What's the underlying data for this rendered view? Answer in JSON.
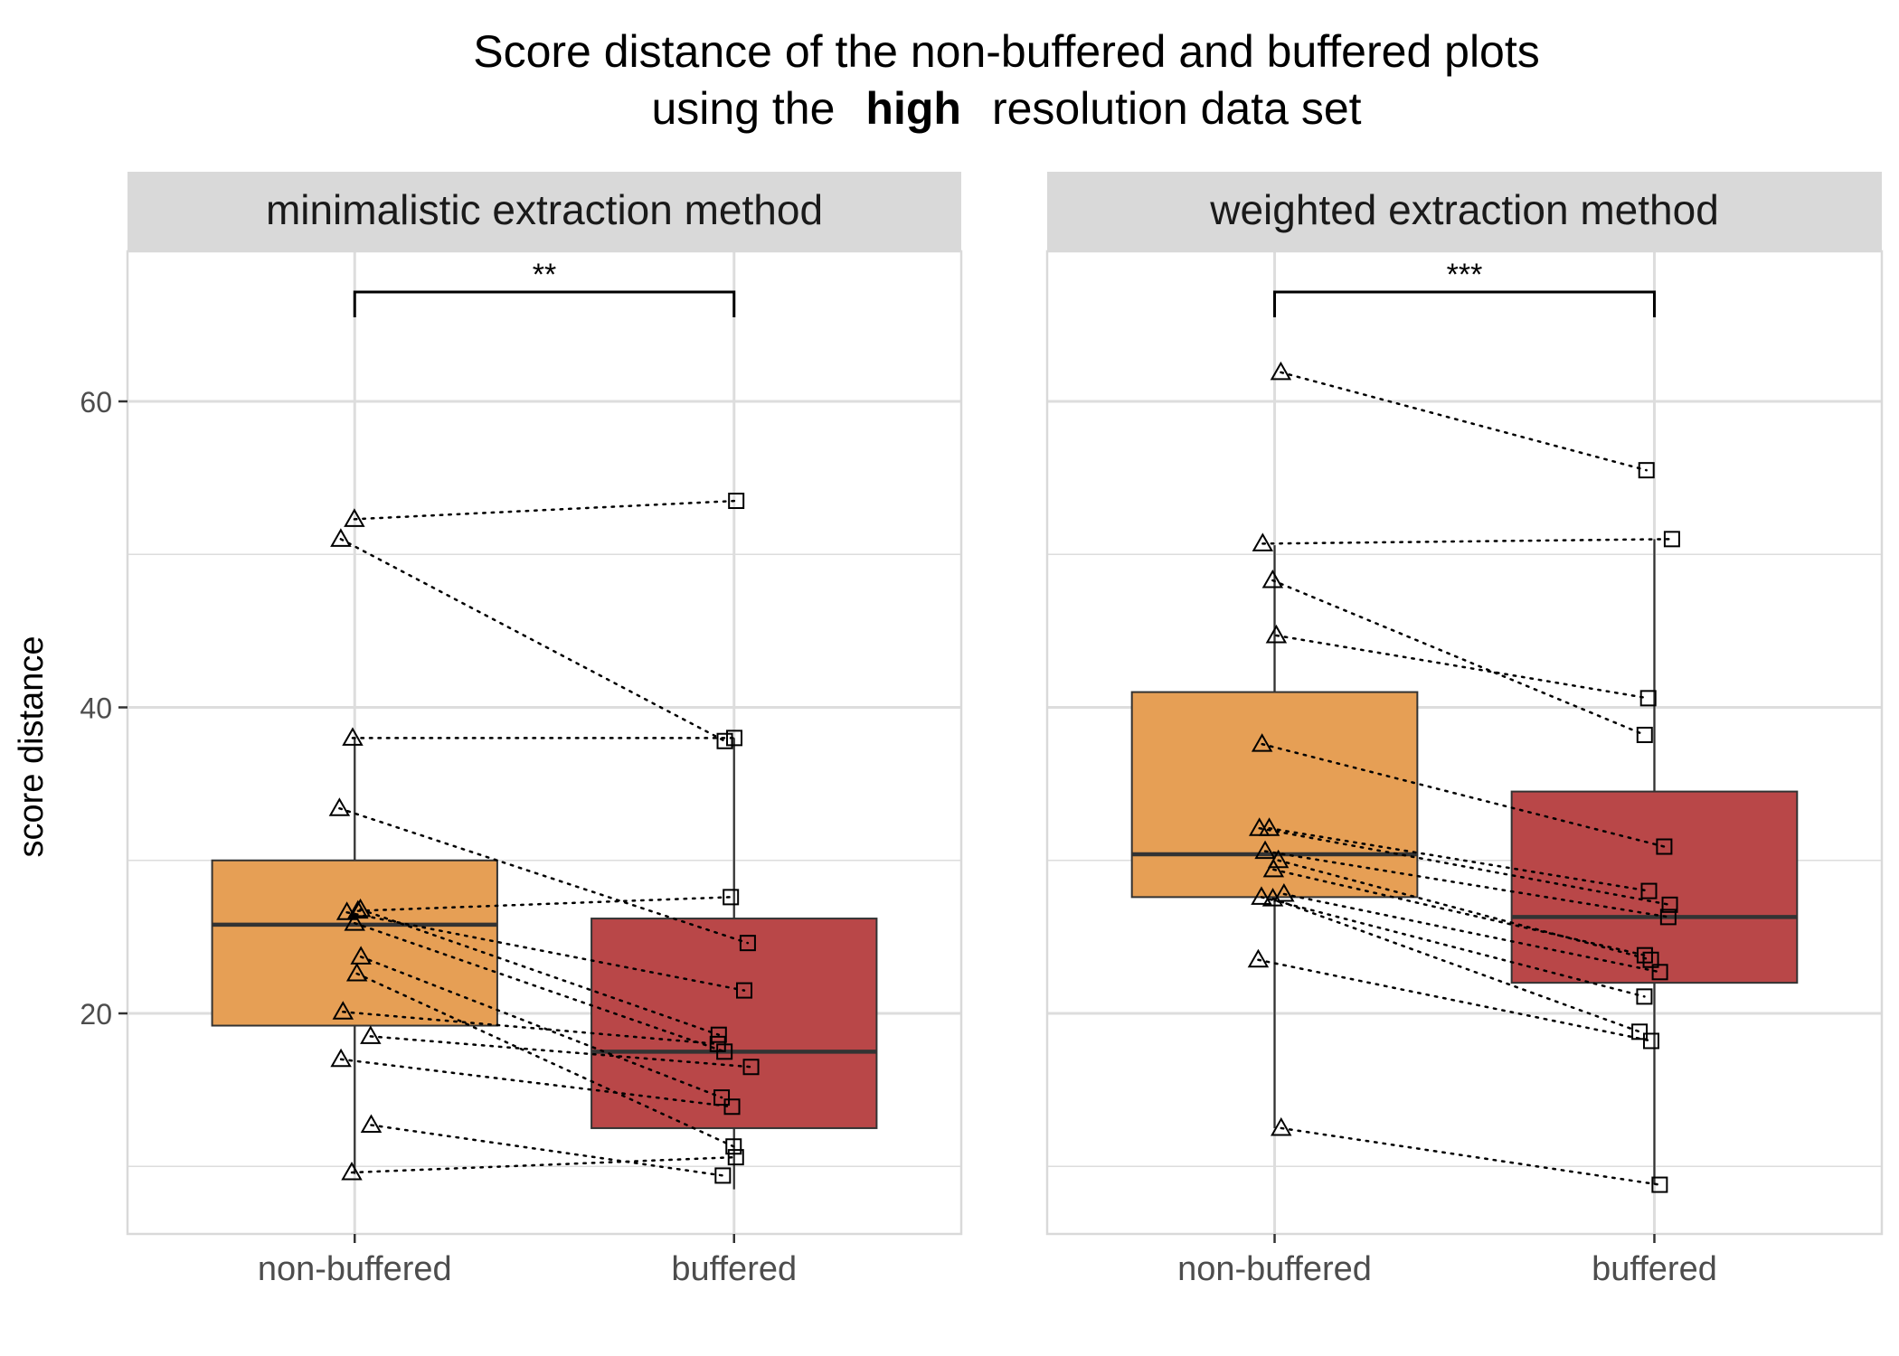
{
  "title": {
    "line1": "Score distance of the non-buffered and buffered plots",
    "line2_prefix": "using the",
    "line2_bold": "high",
    "line2_suffix": "resolution data set"
  },
  "ylabel": "score distance",
  "colors": {
    "non_buffered_fill": "#E69F55",
    "buffered_fill": "#B94748",
    "strip_bg": "#D9D9D9",
    "grid": "#DDDDDD",
    "median_line": "#333333"
  },
  "chart_data": [
    {
      "type": "box",
      "panel_title": "minimalistic extraction method",
      "categories": [
        "non-buffered",
        "buffered"
      ],
      "ylim": [
        5,
        70
      ],
      "yticks": [
        20,
        40,
        60
      ],
      "grid": true,
      "significance": "**",
      "boxes": [
        {
          "category": "non-buffered",
          "q1": 19.2,
          "median": 25.8,
          "q3": 30.0,
          "whisker_low": 9.5,
          "whisker_high": 38.0
        },
        {
          "category": "buffered",
          "q1": 12.5,
          "median": 17.5,
          "q3": 26.2,
          "whisker_low": 8.5,
          "whisker_high": 38.0
        }
      ],
      "pairs": [
        {
          "non_buffered": 52.3,
          "buffered": 53.5
        },
        {
          "non_buffered": 51.0,
          "buffered": 37.8
        },
        {
          "non_buffered": 38.0,
          "buffered": 38.0
        },
        {
          "non_buffered": 33.4,
          "buffered": 24.6
        },
        {
          "non_buffered": 26.7,
          "buffered": 27.6
        },
        {
          "non_buffered": 26.6,
          "buffered": 21.5
        },
        {
          "non_buffered": 26.8,
          "buffered": 18.6
        },
        {
          "non_buffered": 25.9,
          "buffered": 17.5
        },
        {
          "non_buffered": 23.7,
          "buffered": 14.5
        },
        {
          "non_buffered": 22.6,
          "buffered": 11.3
        },
        {
          "non_buffered": 20.1,
          "buffered": 18.0
        },
        {
          "non_buffered": 18.5,
          "buffered": 16.5
        },
        {
          "non_buffered": 17.0,
          "buffered": 13.9
        },
        {
          "non_buffered": 12.7,
          "buffered": 9.4
        },
        {
          "non_buffered": 9.6,
          "buffered": 10.6
        }
      ]
    },
    {
      "type": "box",
      "panel_title": "weighted extraction method",
      "categories": [
        "non-buffered",
        "buffered"
      ],
      "ylim": [
        5,
        70
      ],
      "yticks": [
        20,
        40,
        60
      ],
      "grid": true,
      "significance": "***",
      "boxes": [
        {
          "category": "non-buffered",
          "q1": 27.6,
          "median": 30.4,
          "q3": 41.0,
          "whisker_low": 12.5,
          "whisker_high": 50.6
        },
        {
          "category": "buffered",
          "q1": 22.0,
          "median": 26.3,
          "q3": 34.5,
          "whisker_low": 8.8,
          "whisker_high": 51.0
        }
      ],
      "pairs": [
        {
          "non_buffered": 61.9,
          "buffered": 55.5
        },
        {
          "non_buffered": 50.7,
          "buffered": 51.0
        },
        {
          "non_buffered": 48.3,
          "buffered": 38.2
        },
        {
          "non_buffered": 44.7,
          "buffered": 40.6
        },
        {
          "non_buffered": 37.6,
          "buffered": 30.9
        },
        {
          "non_buffered": 32.1,
          "buffered": 28.0
        },
        {
          "non_buffered": 32.1,
          "buffered": 27.1
        },
        {
          "non_buffered": 30.6,
          "buffered": 26.3
        },
        {
          "non_buffered": 29.4,
          "buffered": 23.8
        },
        {
          "non_buffered": 30.0,
          "buffered": 23.5
        },
        {
          "non_buffered": 27.8,
          "buffered": 22.7
        },
        {
          "non_buffered": 27.6,
          "buffered": 21.1
        },
        {
          "non_buffered": 27.5,
          "buffered": 18.8
        },
        {
          "non_buffered": 23.5,
          "buffered": 18.2
        },
        {
          "non_buffered": 12.5,
          "buffered": 8.8
        }
      ]
    }
  ]
}
